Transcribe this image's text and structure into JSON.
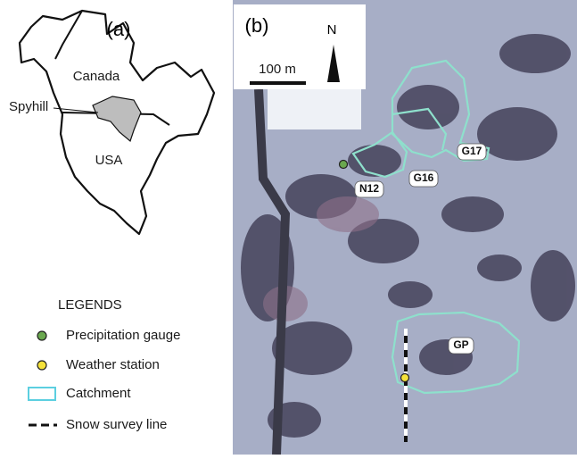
{
  "panel_a": {
    "label": "(a)",
    "place_labels": [
      "Canada",
      "Spyhill",
      "USA"
    ]
  },
  "legend": {
    "title": "LEGENDS",
    "items": [
      "Precipitation gauge",
      "Weather station",
      "Catchment",
      "Snow survey line"
    ]
  },
  "panel_b": {
    "label": "(b)",
    "north": "N",
    "scale": "100 m",
    "catchments": [
      "G17",
      "N12",
      "G16",
      "GP"
    ]
  }
}
